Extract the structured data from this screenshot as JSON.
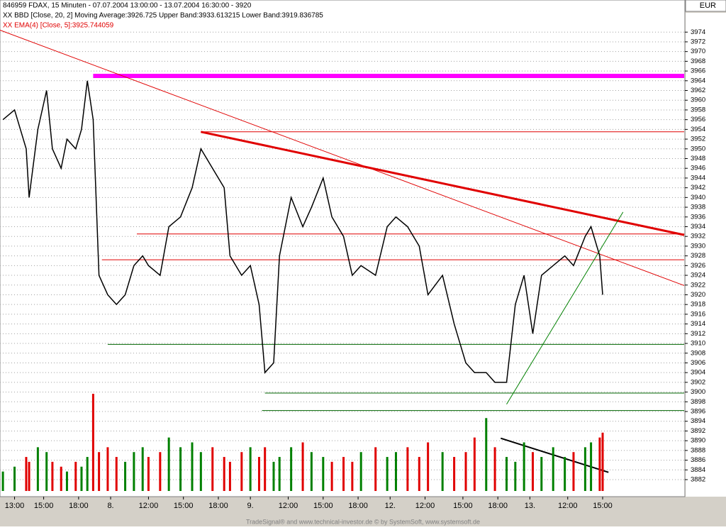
{
  "chart_data": {
    "type": "line",
    "title": "846959  FDAX, 15 Minuten - 07.07.2004 13:00:00 - 13.07.2004 16:30:00 - 3920",
    "subtitle": "XX BBD [Close, 20, 2] Moving Average:3926.725 Upper Band:3933.613215 Lower Band:3919.836785",
    "indicator_label": "XX EMA(4) [Close, 5]:3925.744059",
    "currency": "EUR",
    "footer": "TradeSignal® and www.technical-investor.de © by SystemSoft, www.systemsoft.de",
    "xlim": [
      0,
      235
    ],
    "xticks": [
      {
        "value": 5,
        "label": "13:00"
      },
      {
        "value": 15,
        "label": "15:00"
      },
      {
        "value": 27,
        "label": "18:00"
      },
      {
        "value": 38,
        "label": "8."
      },
      {
        "value": 51,
        "label": "12:00"
      },
      {
        "value": 63,
        "label": "15:00"
      },
      {
        "value": 75,
        "label": "18:00"
      },
      {
        "value": 86,
        "label": "9."
      },
      {
        "value": 99,
        "label": "12:00"
      },
      {
        "value": 111,
        "label": "15:00"
      },
      {
        "value": 123,
        "label": "18:00"
      },
      {
        "value": 134,
        "label": "12."
      },
      {
        "value": 146,
        "label": "12:00"
      },
      {
        "value": 159,
        "label": "15:00"
      },
      {
        "value": 171,
        "label": "18:00"
      },
      {
        "value": 182,
        "label": "13."
      },
      {
        "value": 195,
        "label": "12:00"
      },
      {
        "value": 207,
        "label": "15:00"
      }
    ],
    "ylim": [
      3878.5,
      3980.6
    ],
    "yticks": [
      3882,
      3884,
      3886,
      3888,
      3890,
      3892,
      3894,
      3896,
      3898,
      3900,
      3902,
      3904,
      3906,
      3908,
      3910,
      3912,
      3914,
      3916,
      3918,
      3920,
      3922,
      3924,
      3926,
      3928,
      3930,
      3932,
      3934,
      3936,
      3938,
      3940,
      3942,
      3944,
      3946,
      3948,
      3950,
      3952,
      3954,
      3956,
      3958,
      3960,
      3962,
      3964,
      3966,
      3968,
      3970,
      3972,
      3974
    ],
    "grid": true,
    "y2lim": [
      0,
      100
    ],
    "x": [
      1,
      5,
      9,
      10,
      13,
      16,
      18,
      21,
      23,
      26,
      28,
      30,
      32,
      34,
      37,
      40,
      43,
      46,
      49,
      51,
      55,
      58,
      62,
      66,
      69,
      73,
      77,
      79,
      83,
      86,
      89,
      91,
      94,
      96,
      100,
      104,
      107,
      111,
      114,
      118,
      121,
      124,
      129,
      133,
      136,
      140,
      144,
      147,
      152,
      156,
      160,
      163,
      167,
      170,
      174,
      177,
      180,
      183,
      186,
      190,
      194,
      197,
      201,
      203,
      206,
      207
    ],
    "series": [
      {
        "name": "Close",
        "color": "#000000",
        "values": [
          3956,
          3958,
          3950,
          3940,
          3954,
          3962,
          3950,
          3946,
          3952,
          3950,
          3954,
          3964,
          3956,
          3924,
          3920,
          3918,
          3920,
          3926,
          3928,
          3926,
          3924,
          3934,
          3936,
          3942,
          3950,
          3946,
          3942,
          3928,
          3924,
          3926,
          3918,
          3904,
          3906,
          3928,
          3940,
          3934,
          3938,
          3944,
          3936,
          3932,
          3924,
          3926,
          3924,
          3934,
          3936,
          3934,
          3930,
          3920,
          3924,
          3914,
          3906,
          3904,
          3904,
          3902,
          3902,
          3918,
          3924,
          3912,
          3924,
          3926,
          3928,
          3926,
          3932,
          3934,
          3928,
          3920
        ]
      },
      {
        "name": "Volume",
        "axis": "y2",
        "type": "bar",
        "values": [
          20,
          25,
          35,
          30,
          45,
          40,
          30,
          25,
          20,
          30,
          25,
          35,
          100,
          40,
          45,
          35,
          30,
          40,
          45,
          35,
          40,
          55,
          45,
          50,
          40,
          45,
          35,
          30,
          40,
          45,
          35,
          45,
          30,
          35,
          45,
          50,
          40,
          35,
          30,
          35,
          30,
          40,
          45,
          35,
          40,
          45,
          35,
          50,
          40,
          35,
          40,
          55,
          75,
          45,
          35,
          30,
          50,
          40,
          35,
          45,
          35,
          40,
          45,
          50,
          55,
          60
        ]
      }
    ],
    "levels": [
      {
        "value": 3965,
        "x": 32,
        "color": "#ff00ff"
      },
      {
        "value": 3953.5,
        "x": 69,
        "color": "#e00000"
      },
      {
        "value": 3932.5,
        "x": 47,
        "color": "#e00000"
      },
      {
        "value": 3927.2,
        "x": 35,
        "color": "#e00000"
      },
      {
        "value": 3909.8,
        "x": 37,
        "color": "#006400"
      },
      {
        "value": 3899.8,
        "x": 91,
        "color": "#006400"
      },
      {
        "value": 3896.2,
        "x": 90,
        "color": "#006400"
      }
    ],
    "trendlines": [
      {
        "x": [
          69,
          235
        ],
        "y": [
          3953.5,
          3932.3
        ],
        "color": "#e00000"
      },
      {
        "x": [
          0,
          235
        ],
        "y": [
          3974.4,
          3921.9
        ],
        "color": "#e00000"
      },
      {
        "x": [
          174,
          214
        ],
        "y": [
          3897.5,
          3937
        ],
        "color": "#008000"
      },
      {
        "x": [
          172,
          209
        ],
        "y": [
          3890.5,
          3883.5
        ],
        "color": "#000000"
      }
    ]
  }
}
